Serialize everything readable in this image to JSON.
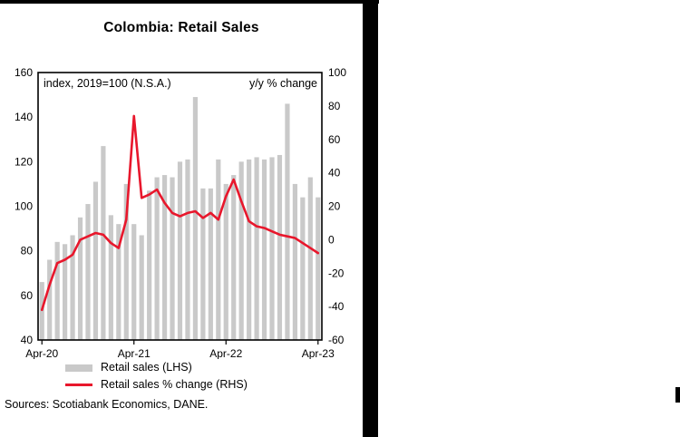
{
  "source_note": "Sources: Scotiabank Economics, DANE.",
  "chart_data": {
    "type": "bar",
    "title": "Colombia: Retail Sales",
    "left_axis": {
      "label": "index, 2019=100 (N.S.A.)",
      "ylim": [
        40,
        160
      ],
      "ticks": [
        160,
        140,
        120,
        100,
        80,
        60,
        40
      ]
    },
    "right_axis": {
      "label": "y/y % change",
      "ylim": [
        -60,
        100
      ],
      "ticks": [
        100,
        80,
        60,
        40,
        20,
        0,
        -20,
        -40,
        -60
      ]
    },
    "x_tick_labels": [
      "Apr-20",
      "Apr-21",
      "Apr-22",
      "Apr-23"
    ],
    "x_tick_indices": [
      0,
      12,
      24,
      36
    ],
    "categories": [
      "Apr-20",
      "May-20",
      "Jun-20",
      "Jul-20",
      "Aug-20",
      "Sep-20",
      "Oct-20",
      "Nov-20",
      "Dec-20",
      "Jan-21",
      "Feb-21",
      "Mar-21",
      "Apr-21",
      "May-21",
      "Jun-21",
      "Jul-21",
      "Aug-21",
      "Sep-21",
      "Oct-21",
      "Nov-21",
      "Dec-21",
      "Jan-22",
      "Feb-22",
      "Mar-22",
      "Apr-22",
      "May-22",
      "Jun-22",
      "Jul-22",
      "Aug-22",
      "Sep-22",
      "Oct-22",
      "Nov-22",
      "Dec-22",
      "Jan-23",
      "Feb-23",
      "Mar-23",
      "Apr-23"
    ],
    "series": [
      {
        "name": "Retail sales (LHS)",
        "type": "bar",
        "axis": "left",
        "color": "#c9c9c9",
        "values": [
          66,
          76,
          84,
          83,
          87,
          95,
          101,
          111,
          127,
          96,
          92,
          110,
          92,
          87,
          107,
          113,
          114,
          113,
          120,
          121,
          149,
          108,
          108,
          121,
          110,
          114,
          120,
          121,
          122,
          121,
          122,
          123,
          146,
          110,
          104,
          113,
          104
        ]
      },
      {
        "name": "Retail sales % change (RHS)",
        "type": "line",
        "axis": "right",
        "color": "#e8172c",
        "values": [
          -42,
          -27,
          -14,
          -12,
          -9,
          0,
          2,
          4,
          3,
          -2,
          -5,
          12,
          74,
          25,
          27,
          30,
          22,
          16,
          14,
          16,
          17,
          13,
          16,
          12,
          26,
          36,
          23,
          11,
          8,
          7,
          5,
          3,
          2,
          1,
          -2,
          -5,
          -8
        ]
      }
    ],
    "legend_position": "bottom",
    "grid": false
  }
}
